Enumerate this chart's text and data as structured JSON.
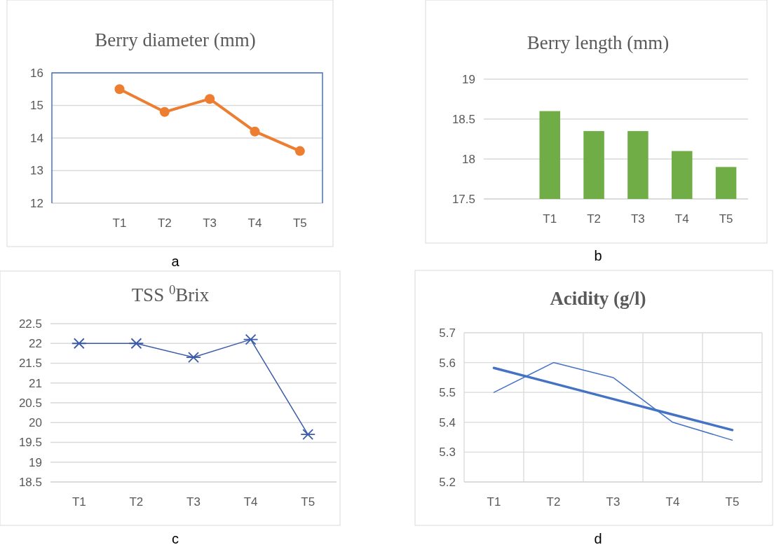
{
  "chart_data": [
    {
      "type": "line",
      "title": "Berry diameter (mm)",
      "categories": [
        null,
        "T1",
        "T2",
        "T3",
        "T4",
        "T5"
      ],
      "values": [
        null,
        15.5,
        14.8,
        15.2,
        14.2,
        13.6
      ],
      "color": "#ed7d31",
      "marker": "circle",
      "ylim": [
        12,
        16
      ],
      "yticks": [
        12,
        13,
        14,
        15,
        16
      ],
      "grid": "y",
      "annotations": [
        "a"
      ]
    },
    {
      "type": "bar",
      "title": "Berry length (mm)",
      "categories": [
        null,
        "T1",
        "T2",
        "T3",
        "T4",
        "T5"
      ],
      "values": [
        null,
        18.6,
        18.35,
        18.35,
        18.1,
        17.9
      ],
      "color": "#70ad47",
      "ylim": [
        17.5,
        19
      ],
      "yticks": [
        17.5,
        18,
        18.5,
        19
      ],
      "grid": "y",
      "annotations": [
        "b"
      ]
    },
    {
      "type": "line",
      "title": "TSS $^{0}$Brix",
      "categories": [
        "T1",
        "T2",
        "T3",
        "T4",
        "T5"
      ],
      "values": [
        22,
        22,
        21.65,
        22.1,
        19.7
      ],
      "color": "#3a5ca8",
      "marker": "cross",
      "ylim": [
        18.5,
        22.5
      ],
      "yticks": [
        18.5,
        19,
        19.5,
        20,
        20.5,
        21,
        21.5,
        22,
        22.5
      ],
      "grid": "y",
      "annotations": [
        "c"
      ]
    },
    {
      "type": "line",
      "title": "Acidity (g/l)",
      "categories": [
        "T1",
        "T2",
        "T3",
        "T4",
        "T5"
      ],
      "series": [
        {
          "color": "#4472c4",
          "values": [
            5.5,
            5.6,
            5.55,
            5.4,
            5.34
          ]
        },
        {
          "type": "line",
          "color": "#4472c4",
          "values": [
            5.582,
            5.53,
            5.478,
            5.426,
            5.374
          ]
        }
      ],
      "ylim": [
        5.2,
        5.7
      ],
      "yticks": [
        5.2,
        5.3,
        5.4,
        5.5,
        5.6,
        5.7
      ],
      "grid": true,
      "annotations": [
        "d"
      ]
    }
  ]
}
